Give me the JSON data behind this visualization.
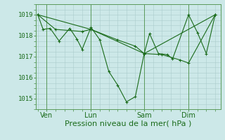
{
  "bg_color": "#cce8e8",
  "grid_color": "#aacccc",
  "line_color": "#1a6b1a",
  "marker_color": "#1a6b1a",
  "xlabel": "Pression niveau de la mer( hPa )",
  "xlabel_fontsize": 8,
  "ylim": [
    1014.5,
    1019.5
  ],
  "yticks": [
    1015,
    1016,
    1017,
    1018,
    1019
  ],
  "xtick_labels": [
    "Ven",
    "Lun",
    "Sam",
    "Dim"
  ],
  "xtick_positions": [
    0.5,
    3.0,
    6.0,
    8.5
  ],
  "vline_positions": [
    0.5,
    3.0,
    6.0,
    8.5
  ],
  "series1_x": [
    0,
    0.3,
    0.7,
    1.2,
    1.8,
    2.2,
    2.5,
    3.0,
    3.5,
    4.0,
    4.5,
    5.0,
    5.5,
    6.0,
    6.3,
    6.8,
    7.3,
    7.6,
    8.5,
    9.0,
    9.5,
    10.0
  ],
  "series1_y": [
    1019.0,
    1018.3,
    1018.35,
    1017.75,
    1018.35,
    1017.85,
    1017.35,
    1018.4,
    1017.8,
    1016.3,
    1015.65,
    1014.85,
    1015.1,
    1017.15,
    1018.1,
    1017.15,
    1017.1,
    1016.9,
    1019.0,
    1018.15,
    1017.15,
    1019.0
  ],
  "series2_x": [
    0,
    1.0,
    2.5,
    3.0,
    4.5,
    5.5,
    6.0,
    7.0,
    8.0,
    8.5,
    10.0
  ],
  "series2_y": [
    1019.0,
    1018.3,
    1018.2,
    1018.3,
    1017.8,
    1017.5,
    1017.15,
    1017.1,
    1016.85,
    1016.7,
    1019.0
  ],
  "series3_x": [
    0,
    3.0,
    6.0,
    10.0
  ],
  "series3_y": [
    1019.0,
    1018.3,
    1017.15,
    1019.0
  ],
  "xlim": [
    -0.1,
    10.3
  ]
}
